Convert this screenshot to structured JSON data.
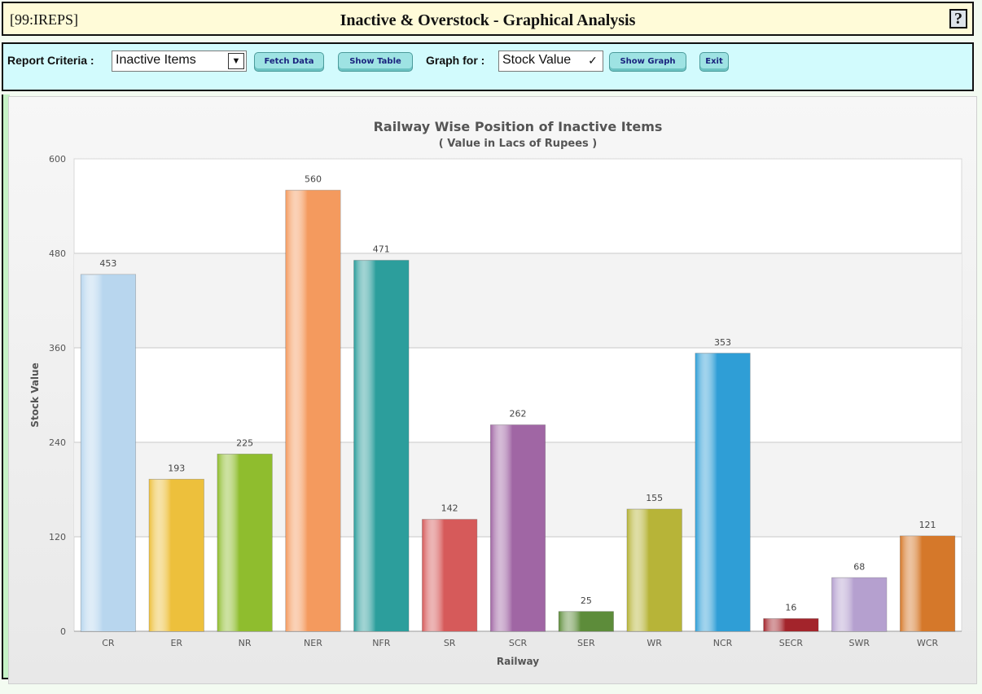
{
  "header": {
    "app_code": "[99:IREPS]",
    "title": "Inactive & Overstock - Graphical Analysis",
    "help_label": "?"
  },
  "toolbar": {
    "report_criteria_label": "Report Criteria :",
    "report_criteria_value": "Inactive Items",
    "fetch_label": "Fetch Data",
    "show_table_label": "Show Table",
    "graph_for_label": "Graph for :",
    "graph_for_value": "Stock Value",
    "show_graph_label": "Show Graph",
    "exit_label": "Exit"
  },
  "chart_data": {
    "type": "bar",
    "title": "Railway Wise Position of Inactive Items",
    "subtitle": "( Value in Lacs of Rupees )",
    "xlabel": "Railway",
    "ylabel": "Stock Value",
    "ylim": [
      0,
      600
    ],
    "yticks": [
      0,
      120,
      240,
      360,
      480,
      600
    ],
    "categories": [
      "CR",
      "ER",
      "NR",
      "NER",
      "NFR",
      "SR",
      "SCR",
      "SER",
      "WR",
      "NCR",
      "SECR",
      "SWR",
      "WCR"
    ],
    "values": [
      453,
      193,
      225,
      560,
      471,
      142,
      262,
      25,
      155,
      353,
      16,
      68,
      121
    ],
    "colors": [
      "#b8d6ee",
      "#edc03c",
      "#8fbd2e",
      "#f49a5e",
      "#2c9e9c",
      "#d65a5a",
      "#a066a4",
      "#5d8c3a",
      "#b7b438",
      "#2f9ed6",
      "#a3242b",
      "#b5a0cf",
      "#d5782a"
    ],
    "grid": true,
    "legend": "none"
  }
}
